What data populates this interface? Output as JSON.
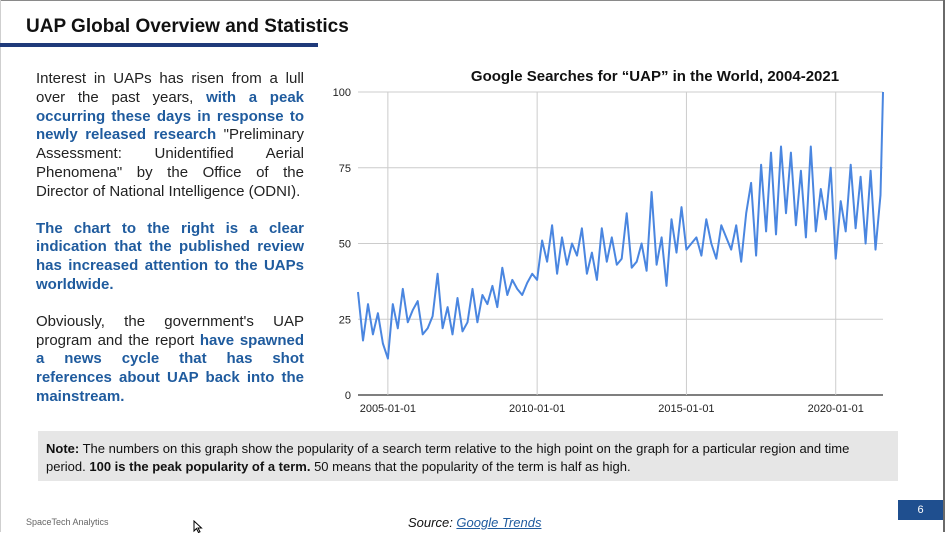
{
  "slide": {
    "title": "UAP Global Overview and Statistics",
    "page_number": "6",
    "company": "SpaceTech Analytics"
  },
  "body": {
    "p1_a": "Interest in UAPs has risen from a lull over the past years, ",
    "p1_hl": "with a peak occurring these days in response to newly released research",
    "p1_b": " \"Preliminary Assessment: Unidentified Aerial Phenomena\" by the Office of the Director of National Intelligence (ODNI).",
    "p2_hl": "The chart to the right is a clear indication that the published review has increased attention to the UAPs worldwide.",
    "p3_a": "Obviously, the government's UAP program and the report ",
    "p3_hl": "have spawned a news cycle that has shot references about UAP back into the mainstream."
  },
  "note": {
    "label": "Note:",
    "text_a": " The numbers on this graph show the popularity of a search term relative to the high point on the graph for a particular region and time period. ",
    "bold": "100 is the peak popularity of a term.",
    "text_b": " 50 means that the popularity of the term is half as high."
  },
  "source": {
    "label": "Source: ",
    "link": "Google Trends"
  },
  "colors": {
    "accent": "#1f3a7a",
    "highlight": "#1f5b9e",
    "line": "#4a86e0"
  },
  "chart_data": {
    "type": "line",
    "title": "Google Searches for “UAP” in the World, 2004-2021",
    "xlabel": "",
    "ylabel": "",
    "ylim": [
      0,
      100
    ],
    "yticks": [
      0,
      25,
      50,
      75,
      100
    ],
    "xlim": [
      "2004-01-01",
      "2021-08-01"
    ],
    "xticks": [
      "2005-01-01",
      "2010-01-01",
      "2015-01-01",
      "2020-01-01"
    ],
    "grid": true,
    "series": [
      {
        "x": [
          "2004-01",
          "2004-03",
          "2004-05",
          "2004-07",
          "2004-09",
          "2004-11",
          "2005-01",
          "2005-03",
          "2005-05",
          "2005-07",
          "2005-09",
          "2005-11",
          "2006-01",
          "2006-03",
          "2006-05",
          "2006-07",
          "2006-09",
          "2006-11",
          "2007-01",
          "2007-03",
          "2007-05",
          "2007-07",
          "2007-09",
          "2007-11",
          "2008-01",
          "2008-03",
          "2008-05",
          "2008-07",
          "2008-09",
          "2008-11",
          "2009-01",
          "2009-03",
          "2009-05",
          "2009-07",
          "2009-09",
          "2009-11",
          "2010-01",
          "2010-03",
          "2010-05",
          "2010-07",
          "2010-09",
          "2010-11",
          "2011-01",
          "2011-03",
          "2011-05",
          "2011-07",
          "2011-09",
          "2011-11",
          "2012-01",
          "2012-03",
          "2012-05",
          "2012-07",
          "2012-09",
          "2012-11",
          "2013-01",
          "2013-03",
          "2013-05",
          "2013-07",
          "2013-09",
          "2013-11",
          "2014-01",
          "2014-03",
          "2014-05",
          "2014-07",
          "2014-09",
          "2014-11",
          "2015-01",
          "2015-03",
          "2015-05",
          "2015-07",
          "2015-09",
          "2015-11",
          "2016-01",
          "2016-03",
          "2016-05",
          "2016-07",
          "2016-09",
          "2016-11",
          "2017-01",
          "2017-03",
          "2017-05",
          "2017-07",
          "2017-09",
          "2017-11",
          "2018-01",
          "2018-03",
          "2018-05",
          "2018-07",
          "2018-09",
          "2018-11",
          "2019-01",
          "2019-03",
          "2019-05",
          "2019-07",
          "2019-09",
          "2019-11",
          "2020-01",
          "2020-03",
          "2020-05",
          "2020-07",
          "2020-09",
          "2020-11",
          "2021-01",
          "2021-03",
          "2021-05",
          "2021-07",
          "2021-08"
        ],
        "y": [
          34,
          18,
          30,
          20,
          27,
          17,
          12,
          30,
          22,
          35,
          24,
          28,
          31,
          20,
          22,
          26,
          40,
          22,
          29,
          20,
          32,
          21,
          24,
          35,
          24,
          33,
          30,
          36,
          29,
          42,
          33,
          38,
          35,
          33,
          37,
          40,
          38,
          51,
          44,
          56,
          40,
          52,
          43,
          50,
          46,
          55,
          40,
          47,
          38,
          55,
          44,
          52,
          43,
          45,
          60,
          42,
          44,
          50,
          41,
          67,
          43,
          52,
          36,
          58,
          47,
          62,
          48,
          50,
          52,
          46,
          58,
          50,
          45,
          56,
          52,
          48,
          56,
          44,
          60,
          70,
          46,
          76,
          54,
          80,
          53,
          82,
          60,
          80,
          56,
          74,
          52,
          82,
          54,
          68,
          58,
          75,
          45,
          64,
          54,
          76,
          55,
          72,
          50,
          74,
          48,
          66,
          100
        ]
      }
    ]
  }
}
